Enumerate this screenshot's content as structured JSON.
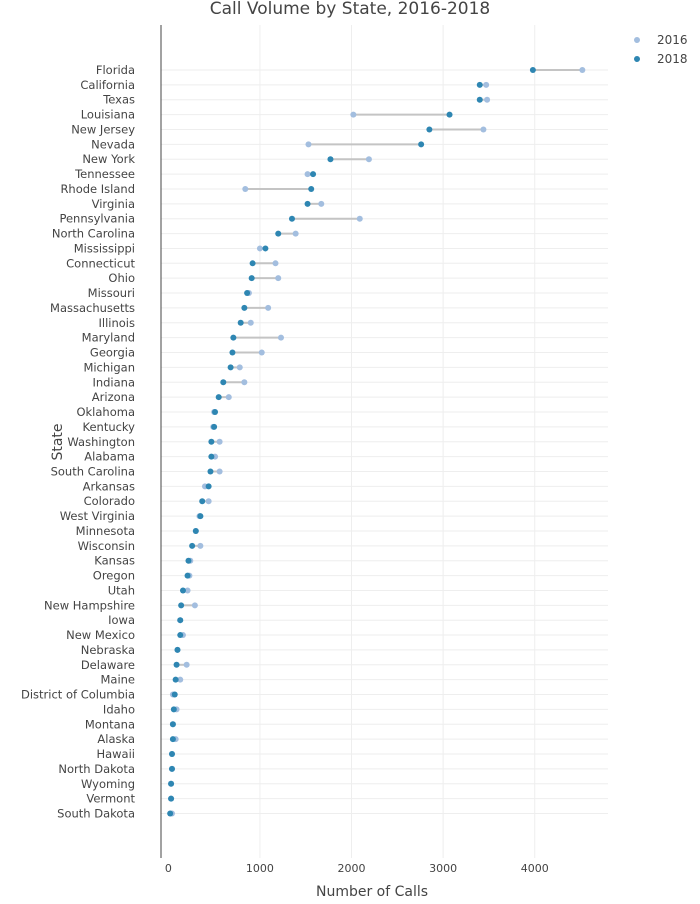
{
  "chart_data": {
    "type": "dumbbell",
    "title": "Call Volume by State, 2016-2018",
    "xlabel": "Number of Calls",
    "ylabel": "State",
    "xlim": [
      -80,
      4800
    ],
    "xticks": [
      0,
      1000,
      2000,
      3000,
      4000
    ],
    "grid": true,
    "legend_position": "top-right",
    "series": [
      {
        "name": "2016",
        "color": "#a3bedf",
        "key": "v2016"
      },
      {
        "name": "2018",
        "color": "#2e86b2",
        "key": "v2018"
      }
    ],
    "states": [
      {
        "name": "Florida",
        "v2016": 4520,
        "v2018": 3980
      },
      {
        "name": "California",
        "v2016": 3470,
        "v2018": 3400
      },
      {
        "name": "Texas",
        "v2016": 3480,
        "v2018": 3400
      },
      {
        "name": "Louisiana",
        "v2016": 2020,
        "v2018": 3070
      },
      {
        "name": "New Jersey",
        "v2016": 3440,
        "v2018": 2850
      },
      {
        "name": "Nevada",
        "v2016": 1530,
        "v2018": 2760
      },
      {
        "name": "New York",
        "v2016": 2190,
        "v2018": 1770
      },
      {
        "name": "Tennessee",
        "v2016": 1520,
        "v2018": 1580
      },
      {
        "name": "Rhode Island",
        "v2016": 840,
        "v2018": 1560
      },
      {
        "name": "Virginia",
        "v2016": 1670,
        "v2018": 1520
      },
      {
        "name": "Pennsylvania",
        "v2016": 2090,
        "v2018": 1350
      },
      {
        "name": "North Carolina",
        "v2016": 1390,
        "v2018": 1200
      },
      {
        "name": "Mississippi",
        "v2016": 1000,
        "v2018": 1060
      },
      {
        "name": "Connecticut",
        "v2016": 1170,
        "v2018": 920
      },
      {
        "name": "Ohio",
        "v2016": 1200,
        "v2018": 910
      },
      {
        "name": "Missouri",
        "v2016": 880,
        "v2018": 860
      },
      {
        "name": "Massachusetts",
        "v2016": 1090,
        "v2018": 830
      },
      {
        "name": "Illinois",
        "v2016": 900,
        "v2018": 790
      },
      {
        "name": "Maryland",
        "v2016": 1230,
        "v2018": 710
      },
      {
        "name": "Georgia",
        "v2016": 1020,
        "v2018": 700
      },
      {
        "name": "Michigan",
        "v2016": 780,
        "v2018": 680
      },
      {
        "name": "Indiana",
        "v2016": 830,
        "v2018": 600
      },
      {
        "name": "Arizona",
        "v2016": 660,
        "v2018": 550
      },
      {
        "name": "Oklahoma",
        "v2016": 500,
        "v2018": 510
      },
      {
        "name": "Kentucky",
        "v2016": 490,
        "v2018": 500
      },
      {
        "name": "Washington",
        "v2016": 560,
        "v2018": 470
      },
      {
        "name": "Alabama",
        "v2016": 510,
        "v2018": 470
      },
      {
        "name": "South Carolina",
        "v2016": 560,
        "v2018": 460
      },
      {
        "name": "Arkansas",
        "v2016": 400,
        "v2018": 440
      },
      {
        "name": "Colorado",
        "v2016": 440,
        "v2018": 370
      },
      {
        "name": "West Virginia",
        "v2016": 340,
        "v2018": 350
      },
      {
        "name": "Minnesota",
        "v2016": 300,
        "v2018": 300
      },
      {
        "name": "Wisconsin",
        "v2016": 350,
        "v2018": 260
      },
      {
        "name": "Kansas",
        "v2016": 240,
        "v2018": 220
      },
      {
        "name": "Oregon",
        "v2016": 230,
        "v2018": 210
      },
      {
        "name": "Utah",
        "v2016": 210,
        "v2018": 160
      },
      {
        "name": "New Hampshire",
        "v2016": 290,
        "v2018": 140
      },
      {
        "name": "Iowa",
        "v2016": 130,
        "v2018": 130
      },
      {
        "name": "New Mexico",
        "v2016": 160,
        "v2018": 130
      },
      {
        "name": "Nebraska",
        "v2016": 100,
        "v2018": 100
      },
      {
        "name": "Delaware",
        "v2016": 200,
        "v2018": 90
      },
      {
        "name": "Maine",
        "v2016": 130,
        "v2018": 80
      },
      {
        "name": "District of Columbia",
        "v2016": 50,
        "v2018": 70
      },
      {
        "name": "Idaho",
        "v2016": 90,
        "v2018": 60
      },
      {
        "name": "Montana",
        "v2016": 50,
        "v2018": 50
      },
      {
        "name": "Alaska",
        "v2016": 80,
        "v2018": 50
      },
      {
        "name": "Hawaii",
        "v2016": 40,
        "v2018": 40
      },
      {
        "name": "North Dakota",
        "v2016": 40,
        "v2018": 40
      },
      {
        "name": "Wyoming",
        "v2016": 30,
        "v2018": 30
      },
      {
        "name": "Vermont",
        "v2016": 30,
        "v2018": 30
      },
      {
        "name": "South Dakota",
        "v2016": 40,
        "v2018": 20
      }
    ]
  }
}
